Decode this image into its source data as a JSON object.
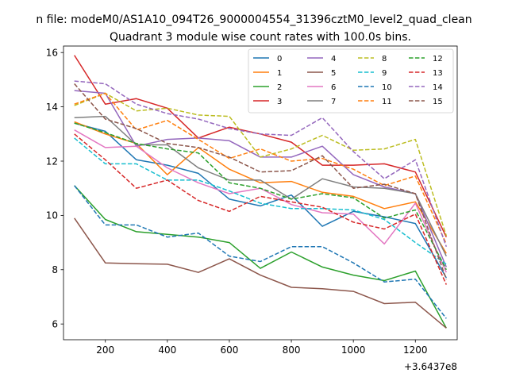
{
  "chart_data": {
    "type": "line",
    "suptitle": "n file: modeM0/AS1A10_094T26_9000004554_31396cztM0_level2_quad_clean",
    "title": "Quadrant 3 module wise count rates with 100.0s bins.",
    "xlabel": "",
    "ylabel": "",
    "offset_label": "+3.6437e8",
    "xlim": [
      65,
      1335
    ],
    "ylim": [
      5.42,
      16.24
    ],
    "xticks": [
      200,
      400,
      600,
      800,
      1000,
      1200
    ],
    "xtick_labels": [
      "200",
      "400",
      "600",
      "800",
      "1000",
      "1200"
    ],
    "yticks": [
      6,
      8,
      10,
      12,
      14,
      16
    ],
    "ytick_labels": [
      "6",
      "8",
      "10",
      "12",
      "14",
      "16"
    ],
    "grid": false,
    "legend_position": "upper right",
    "x": [
      100,
      200,
      300,
      400,
      500,
      600,
      700,
      800,
      900,
      1000,
      1100,
      1200,
      1300
    ],
    "series": [
      {
        "name": "0",
        "color": "#1f77b4",
        "dash": "solid",
        "values": [
          13.4,
          13.1,
          12.05,
          11.85,
          11.55,
          10.6,
          10.35,
          10.75,
          9.6,
          10.15,
          9.95,
          9.7,
          7.7
        ]
      },
      {
        "name": "1",
        "color": "#ff7f0e",
        "dash": "solid",
        "values": [
          13.45,
          13.0,
          12.65,
          11.5,
          12.5,
          11.7,
          11.2,
          11.25,
          10.85,
          10.7,
          10.25,
          10.5,
          8.6
        ]
      },
      {
        "name": "2",
        "color": "#2ca02c",
        "dash": "solid",
        "values": [
          11.1,
          9.85,
          9.4,
          9.3,
          9.2,
          9.0,
          8.05,
          8.65,
          8.1,
          7.8,
          7.6,
          7.95,
          5.85
        ]
      },
      {
        "name": "3",
        "color": "#d62728",
        "dash": "solid",
        "values": [
          15.9,
          14.1,
          14.3,
          13.95,
          12.85,
          13.25,
          13.0,
          12.7,
          11.85,
          11.85,
          11.9,
          11.6,
          9.2
        ]
      },
      {
        "name": "4",
        "color": "#9467bd",
        "dash": "solid",
        "values": [
          14.6,
          14.5,
          12.55,
          12.8,
          12.85,
          12.75,
          12.15,
          12.15,
          12.55,
          11.5,
          11.05,
          10.8,
          8.1
        ]
      },
      {
        "name": "5",
        "color": "#8c564b",
        "dash": "solid",
        "values": [
          9.9,
          8.25,
          8.22,
          8.2,
          7.9,
          8.4,
          7.8,
          7.35,
          7.3,
          7.2,
          6.75,
          6.8,
          5.85
        ]
      },
      {
        "name": "6",
        "color": "#e377c2",
        "dash": "solid",
        "values": [
          13.15,
          12.5,
          12.55,
          11.75,
          11.2,
          10.8,
          11.0,
          10.4,
          10.1,
          10.05,
          8.95,
          10.45,
          7.9
        ]
      },
      {
        "name": "7",
        "color": "#7f7f7f",
        "dash": "solid",
        "values": [
          13.6,
          13.65,
          12.6,
          12.6,
          11.75,
          11.3,
          11.3,
          10.6,
          11.35,
          11.05,
          11.0,
          10.8,
          8.5
        ]
      },
      {
        "name": "8",
        "color": "#bcbd22",
        "dash": "dashed",
        "values": [
          14.05,
          14.5,
          13.85,
          13.95,
          13.7,
          13.65,
          12.15,
          12.45,
          12.95,
          12.4,
          12.45,
          12.8,
          9.25
        ]
      },
      {
        "name": "9",
        "color": "#17becf",
        "dash": "dashed",
        "values": [
          12.85,
          11.9,
          11.9,
          11.3,
          11.3,
          10.9,
          10.45,
          10.25,
          10.25,
          10.2,
          9.85,
          9.0,
          8.2
        ]
      },
      {
        "name": "10",
        "color": "#1f77b4",
        "dash": "dashed",
        "values": [
          11.1,
          9.65,
          9.65,
          9.2,
          9.35,
          8.5,
          8.3,
          8.85,
          8.85,
          8.25,
          7.55,
          7.65,
          6.2
        ]
      },
      {
        "name": "11",
        "color": "#ff7f0e",
        "dash": "dashed",
        "values": [
          14.1,
          14.5,
          13.15,
          13.5,
          12.8,
          12.1,
          12.45,
          12.0,
          12.1,
          11.7,
          11.1,
          11.45,
          8.95
        ]
      },
      {
        "name": "12",
        "color": "#2ca02c",
        "dash": "dashed",
        "values": [
          13.4,
          13.05,
          12.65,
          12.45,
          12.3,
          11.2,
          11.0,
          10.6,
          10.8,
          10.65,
          9.9,
          10.2,
          8.0
        ]
      },
      {
        "name": "13",
        "color": "#d62728",
        "dash": "dashed",
        "values": [
          13.0,
          12.05,
          11.0,
          11.3,
          10.55,
          10.15,
          10.7,
          10.5,
          10.3,
          9.75,
          9.5,
          10.05,
          7.45
        ]
      },
      {
        "name": "14",
        "color": "#9467bd",
        "dash": "dashed",
        "values": [
          14.95,
          14.85,
          14.1,
          13.75,
          13.55,
          13.2,
          13.0,
          12.95,
          13.6,
          12.35,
          11.35,
          12.05,
          8.85
        ]
      },
      {
        "name": "15",
        "color": "#8c564b",
        "dash": "dashed",
        "values": [
          14.85,
          13.55,
          13.2,
          12.65,
          12.5,
          12.15,
          11.6,
          11.65,
          12.2,
          11.0,
          11.15,
          10.8,
          7.65
        ]
      }
    ]
  }
}
